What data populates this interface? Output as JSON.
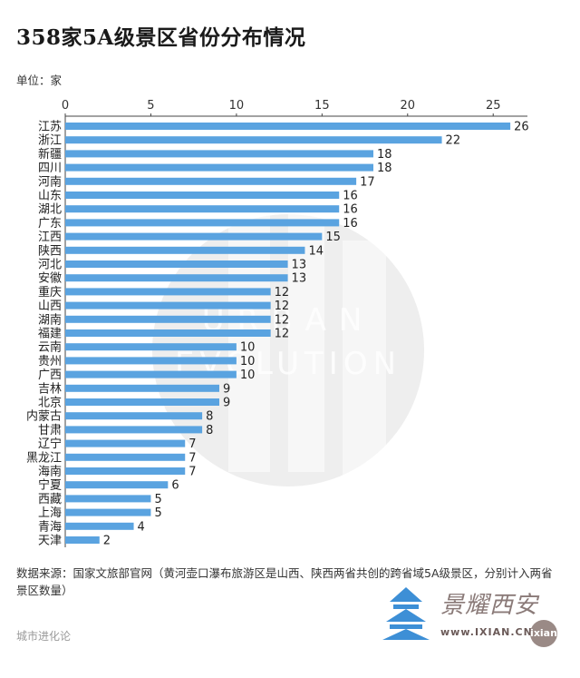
{
  "title": "358家5A级景区省份分布情况",
  "unit": "单位：家",
  "source": "数据来源：国家文旅部官网（黄河壶口瀑布旅游区是山西、陕西两省共创的跨省域5A级景区，分别计入两省景区数量）",
  "footer": "城市进化论",
  "watermark": {
    "center_text_1": "URBAN",
    "center_text_2": "EVOLUTION",
    "site_name": "景耀西安",
    "site_url": "www.IXIAN.CN",
    "badge": "ixian"
  },
  "colors": {
    "bar": "#5aa3e0",
    "axis": "#444444",
    "text": "#222222"
  },
  "chart_data": {
    "type": "bar",
    "orientation": "horizontal",
    "title": "358家5A级景区省份分布情况",
    "xlim": [
      0,
      27
    ],
    "ticks": [
      0,
      5,
      10,
      15,
      20,
      25
    ],
    "categories": [
      "江苏",
      "浙江",
      "新疆",
      "四川",
      "河南",
      "山东",
      "湖北",
      "广东",
      "江西",
      "陕西",
      "河北",
      "安徽",
      "重庆",
      "山西",
      "湖南",
      "福建",
      "云南",
      "贵州",
      "广西",
      "吉林",
      "北京",
      "内蒙古",
      "甘肃",
      "辽宁",
      "黑龙江",
      "海南",
      "宁夏",
      "西藏",
      "上海",
      "青海",
      "天津"
    ],
    "values": [
      26,
      22,
      18,
      18,
      17,
      16,
      16,
      16,
      15,
      14,
      13,
      13,
      12,
      12,
      12,
      12,
      10,
      10,
      10,
      9,
      9,
      8,
      8,
      7,
      7,
      7,
      6,
      5,
      5,
      4,
      2
    ]
  }
}
